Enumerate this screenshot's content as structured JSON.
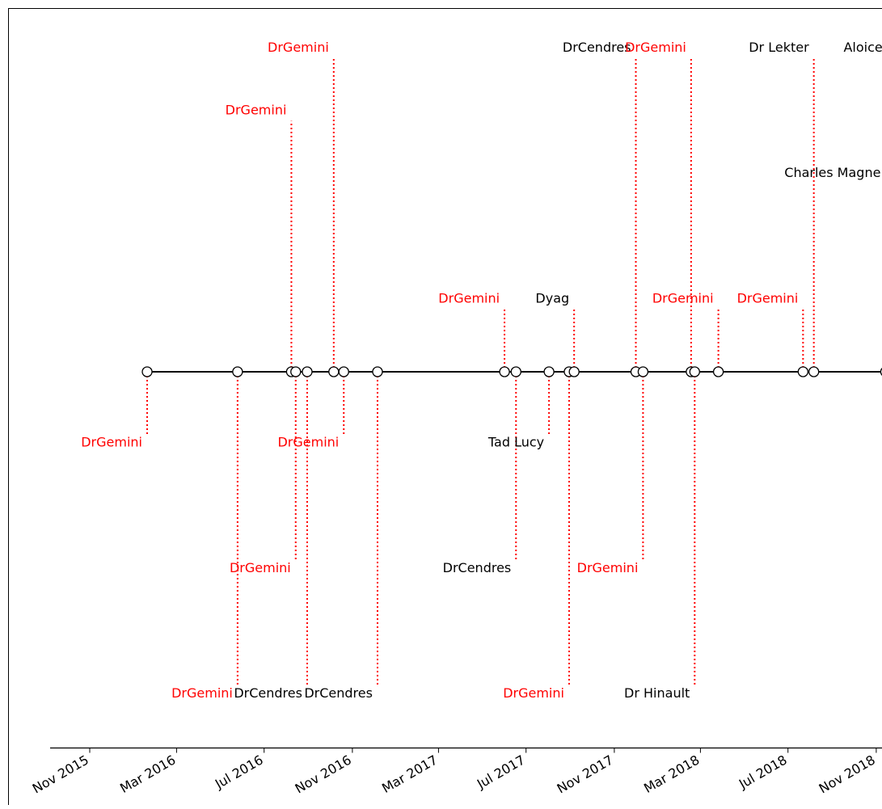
{
  "chart_data": {
    "type": "timeline",
    "title": "",
    "xlabel": "",
    "ylabel": "",
    "grid": false,
    "x_ticks": [
      "Nov 2015",
      "Mar 2016",
      "Jul 2016",
      "Nov 2016",
      "Mar 2017",
      "Jul 2017",
      "Nov 2017",
      "Mar 2018",
      "Jul 2018",
      "Nov 2018"
    ],
    "x_range": [
      "2015-09-02",
      "2018-12-15"
    ],
    "level_range": [
      -6,
      6
    ],
    "colors": {
      "drgemini": "#ff0000",
      "other": "#000000",
      "baseline": "#000000"
    },
    "events": [
      {
        "date": "2016-01-20",
        "name": "DrGemini",
        "level": -1
      },
      {
        "date": "2016-05-25",
        "name": "DrGemini",
        "level": -5
      },
      {
        "date": "2016-08-08",
        "name": "DrGemini",
        "level": 4
      },
      {
        "date": "2016-08-14",
        "name": "DrGemini",
        "level": -3
      },
      {
        "date": "2016-08-30",
        "name": "DrCendres",
        "level": -5
      },
      {
        "date": "2016-10-06",
        "name": "DrGemini",
        "level": 5
      },
      {
        "date": "2016-10-20",
        "name": "DrGemini",
        "level": -1
      },
      {
        "date": "2016-12-06",
        "name": "DrCendres",
        "level": -5
      },
      {
        "date": "2017-06-01",
        "name": "DrGemini",
        "level": 1
      },
      {
        "date": "2017-06-17",
        "name": "DrCendres",
        "level": -3
      },
      {
        "date": "2017-08-02",
        "name": "Tad Lucy",
        "level": -1
      },
      {
        "date": "2017-08-30",
        "name": "DrGemini",
        "level": -5
      },
      {
        "date": "2017-09-06",
        "name": "Dyag",
        "level": 1
      },
      {
        "date": "2017-12-01",
        "name": "DrCendres",
        "level": 5
      },
      {
        "date": "2017-12-11",
        "name": "DrGemini",
        "level": -3
      },
      {
        "date": "2018-02-16",
        "name": "DrGemini",
        "level": 5
      },
      {
        "date": "2018-02-21",
        "name": "Dr Hinault",
        "level": -5
      },
      {
        "date": "2018-03-26",
        "name": "DrGemini",
        "level": 1
      },
      {
        "date": "2018-07-22",
        "name": "DrGemini",
        "level": 1
      },
      {
        "date": "2018-08-06",
        "name": "Dr Lekter",
        "level": 5
      },
      {
        "date": "2018-11-14",
        "name": "Charles Magne",
        "level": 3
      },
      {
        "date": "2018-11-26",
        "name": "Aloices",
        "level": 5
      }
    ]
  }
}
